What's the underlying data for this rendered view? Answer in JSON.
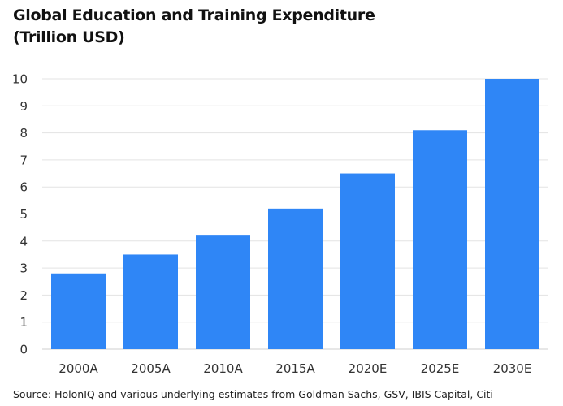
{
  "title_line1": "Global Education and Training Expenditure",
  "title_line2": "(Trillion USD)",
  "source": "Source: HolonIQ and various underlying estimates from Goldman Sachs, GSV, IBIS Capital, Citi",
  "chart_data": {
    "type": "bar",
    "title": "Global Education and Training Expenditure (Trillion USD)",
    "categories": [
      "2000A",
      "2005A",
      "2010A",
      "2015A",
      "2020E",
      "2025E",
      "2030E"
    ],
    "values": [
      2.8,
      3.5,
      4.2,
      5.2,
      6.5,
      8.1,
      10.0
    ],
    "xlabel": "",
    "ylabel": "",
    "ylim": [
      0,
      10
    ],
    "yticks": [
      0,
      1,
      2,
      3,
      4,
      5,
      6,
      7,
      8,
      9,
      10
    ],
    "grid": true,
    "legend": "none",
    "bar_color": "#2f86f6",
    "grid_color": "#e3e3e3"
  }
}
